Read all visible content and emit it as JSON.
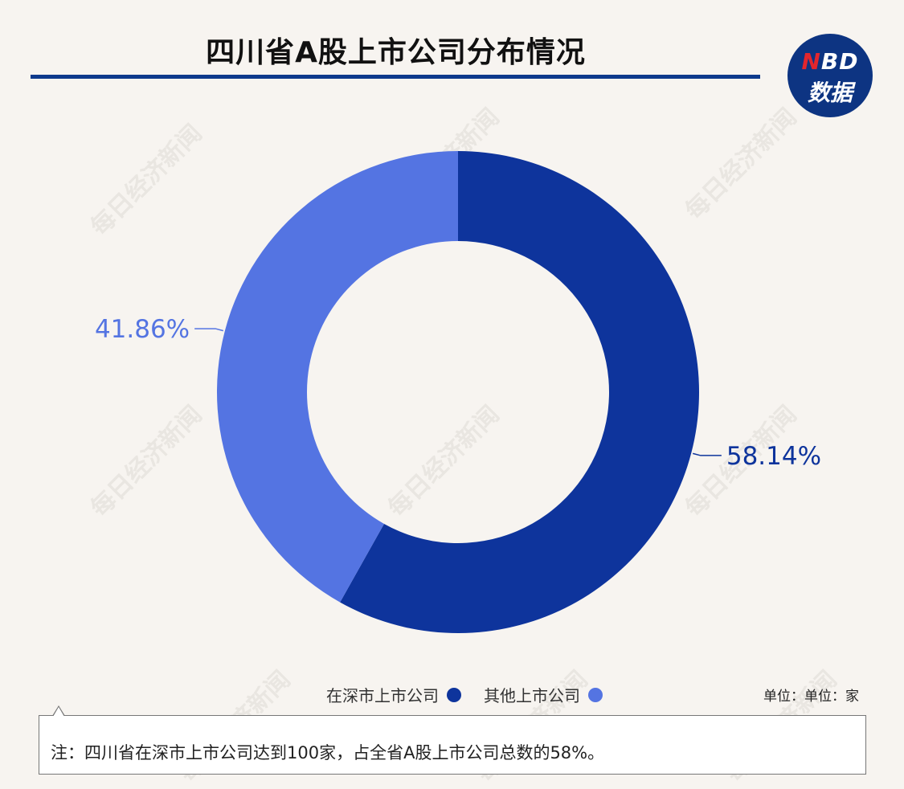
{
  "title": "四川省A股上市公司分布情况",
  "logo": {
    "top_n": "N",
    "top_rest": "BD",
    "bottom": "数据"
  },
  "watermark": "每日经济新闻",
  "unit_label": "单位：单位：家",
  "note": "注：四川省在深市上市公司达到100家，占全省A股上市公司总数的58%。",
  "colors": {
    "title_rule": "#0e3a8c",
    "logo_bg": "#0d3482",
    "background": "#f7f4f0"
  },
  "chart_data": {
    "type": "pie",
    "donut": true,
    "legend_position": "bottom",
    "slices": [
      {
        "label": "在深市上市公司",
        "value": 58.14,
        "display": "58.14%",
        "color": "#0e349c"
      },
      {
        "label": "其他上市公司",
        "value": 41.86,
        "display": "41.86%",
        "color": "#5474e2"
      }
    ]
  }
}
